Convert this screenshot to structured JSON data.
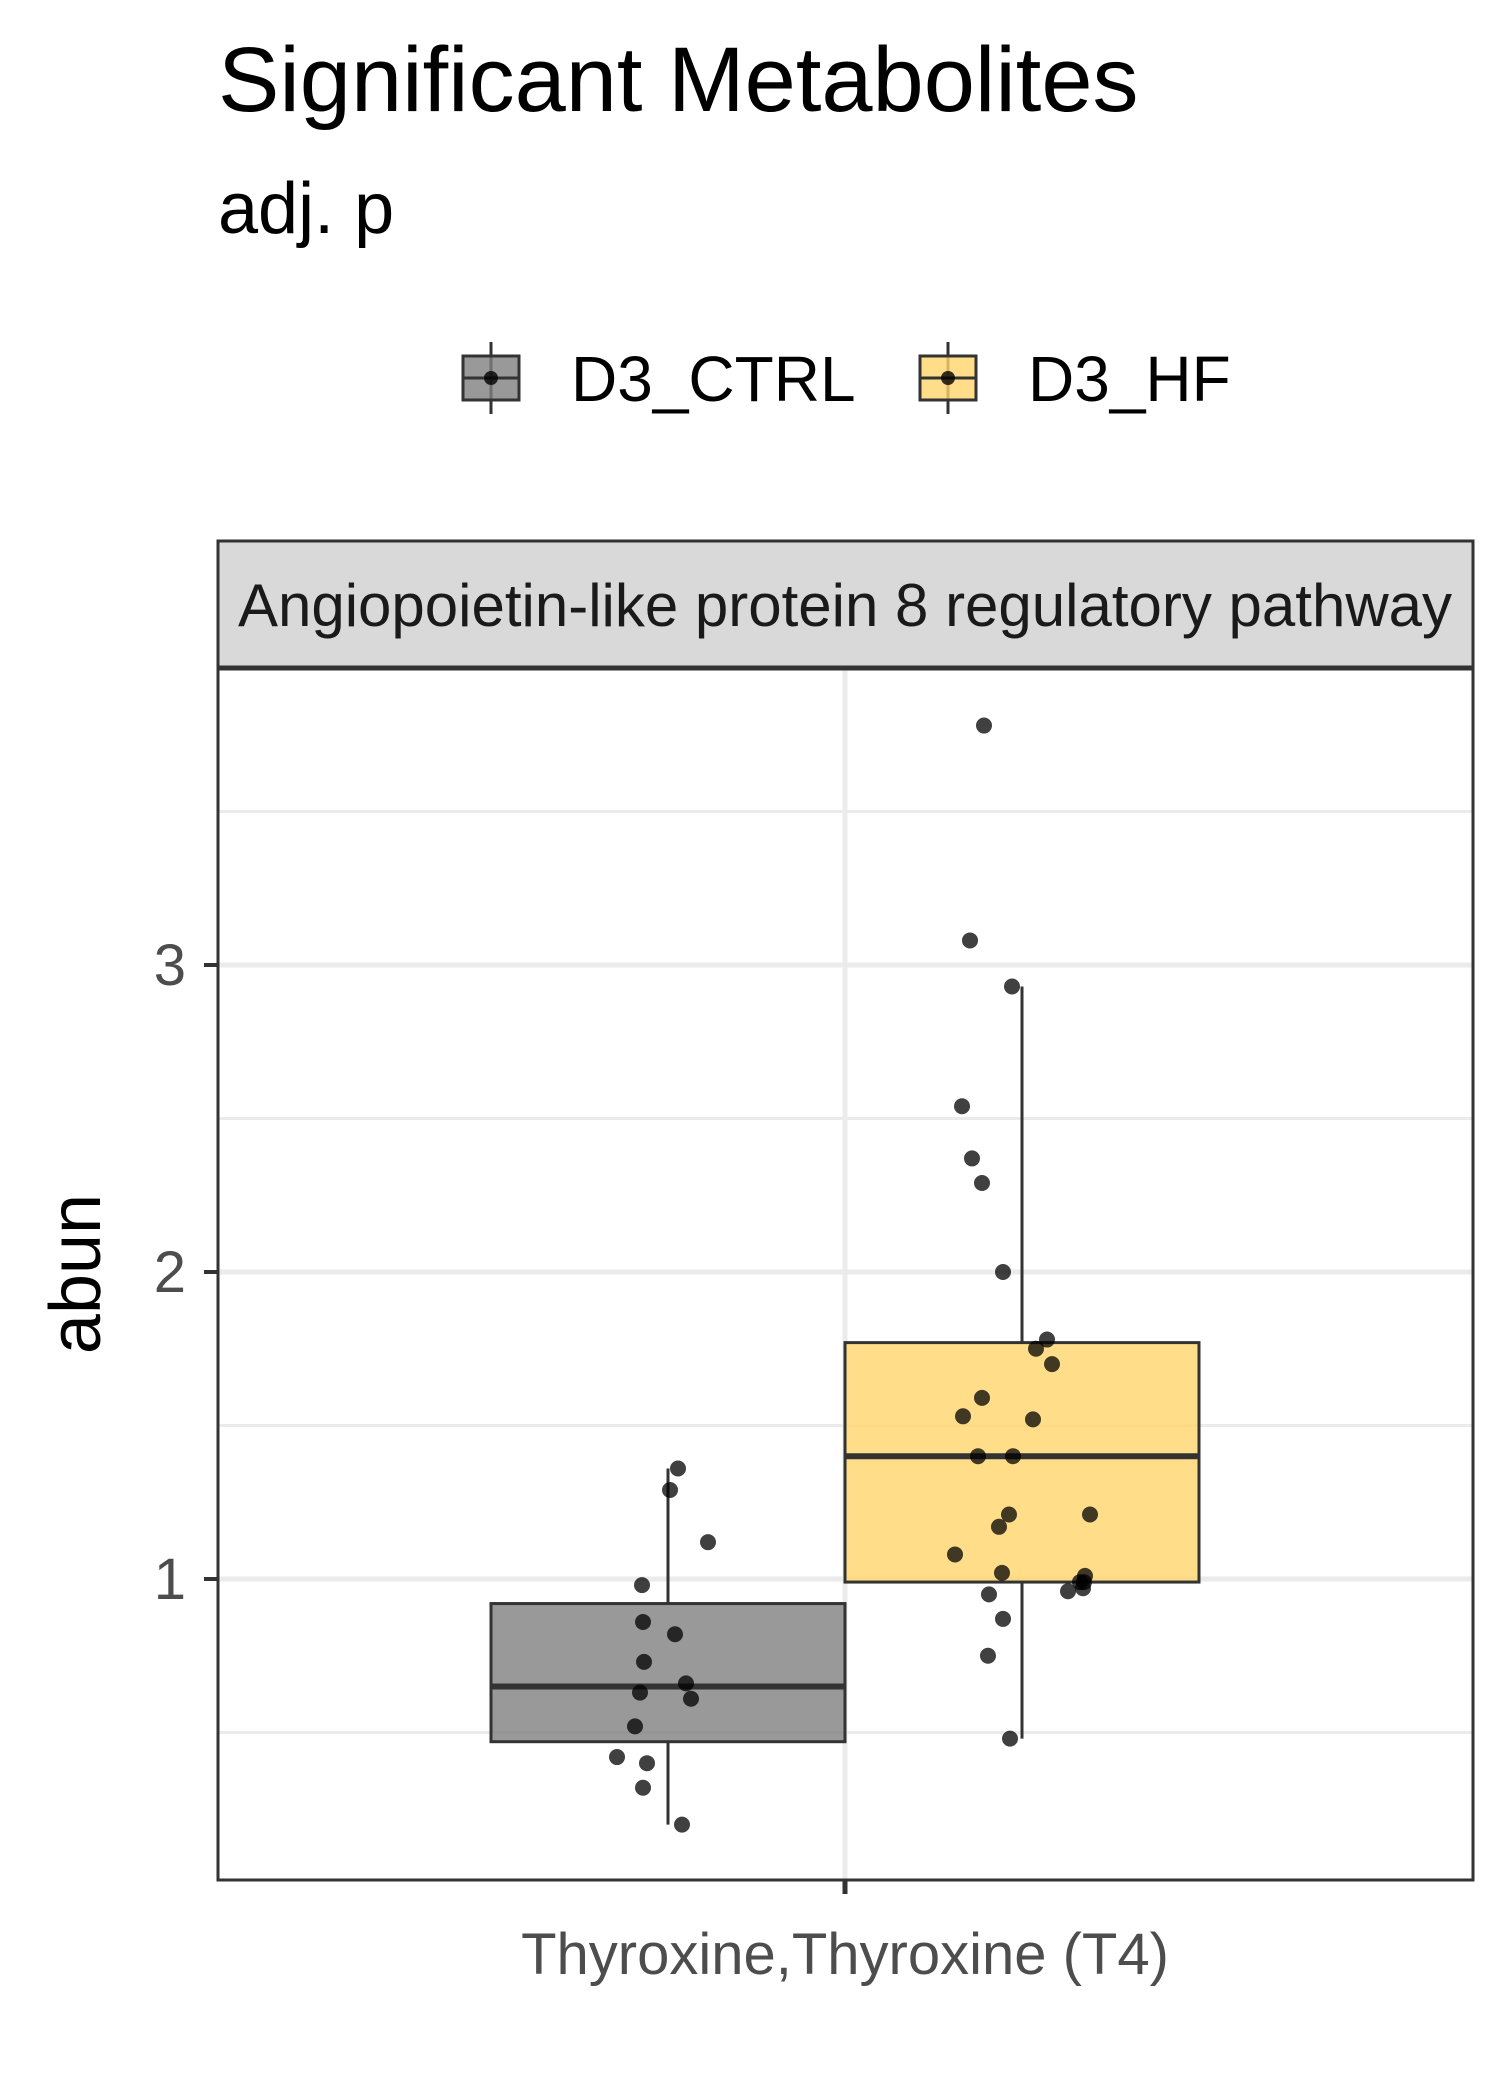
{
  "chart_data": {
    "type": "box",
    "title": "Significant Metabolites",
    "subtitle": "adj. p",
    "facet_label": "Angiopoietin-like protein 8 regulatory pathway",
    "xlabel": "",
    "ylabel": "abun",
    "categories": [
      "Thyroxine,Thyroxine (T4)"
    ],
    "ylim": [
      0.05,
      4.0
    ],
    "yticks": [
      1,
      2,
      3
    ],
    "grid": true,
    "legend_position": "top",
    "series": [
      {
        "name": "D3_CTRL",
        "color": "#808080",
        "box": {
          "whisker_low": 0.2,
          "q1": 0.47,
          "median": 0.65,
          "q3": 0.92,
          "whisker_high": 1.36
        },
        "points": [
          1.36,
          1.29,
          1.12,
          0.98,
          0.86,
          0.82,
          0.73,
          0.66,
          0.63,
          0.61,
          0.52,
          0.42,
          0.4,
          0.32,
          0.2
        ]
      },
      {
        "name": "D3_HF",
        "color": "#FFD56B",
        "box": {
          "whisker_low": 0.48,
          "q1": 0.99,
          "median": 1.4,
          "q3": 1.77,
          "whisker_high": 2.93
        },
        "points": [
          3.78,
          3.08,
          2.93,
          2.54,
          2.37,
          2.29,
          2.0,
          1.78,
          1.75,
          1.7,
          1.59,
          1.53,
          1.52,
          1.4,
          1.4,
          1.21,
          1.21,
          1.17,
          1.08,
          1.02,
          1.01,
          0.99,
          0.99,
          0.97,
          0.96,
          0.95,
          0.87,
          0.75,
          0.48
        ]
      }
    ]
  }
}
